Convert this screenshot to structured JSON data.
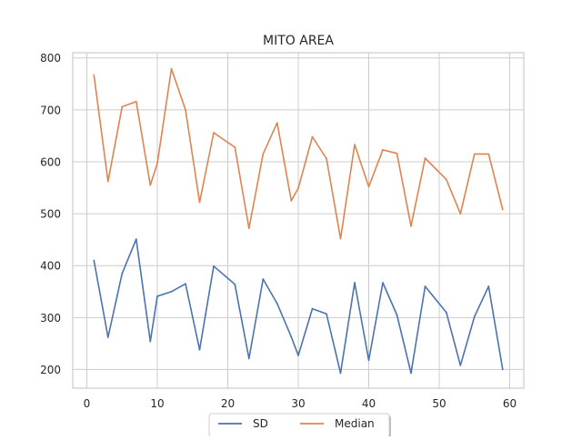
{
  "chart_data": {
    "type": "line",
    "title": "MITO AREA",
    "xlabel": "",
    "ylabel": "",
    "xlim": [
      -2,
      62
    ],
    "ylim": [
      164,
      810
    ],
    "xticks": [
      0,
      10,
      20,
      30,
      40,
      50,
      60
    ],
    "yticks": [
      200,
      300,
      400,
      500,
      600,
      700,
      800
    ],
    "grid": true,
    "legend_position": "bottom-center",
    "x": [
      1,
      3,
      5,
      7,
      9,
      10,
      12,
      14,
      16,
      18,
      21,
      23,
      25,
      27,
      29,
      30,
      32,
      34,
      36,
      38,
      40,
      42,
      44,
      46,
      48,
      51,
      53,
      55,
      57,
      59
    ],
    "series": [
      {
        "name": "SD",
        "color": "#4c72b0",
        "values": [
          410,
          262,
          385,
          451,
          254,
          341,
          350,
          365,
          238,
          399,
          364,
          221,
          374,
          327,
          263,
          227,
          317,
          307,
          193,
          367,
          218,
          367,
          305,
          193,
          360,
          310,
          208,
          302,
          360,
          200
        ]
      },
      {
        "name": "Median",
        "color": "#dd8452",
        "values": [
          767,
          562,
          706,
          716,
          555,
          597,
          779,
          700,
          522,
          656,
          628,
          472,
          615,
          675,
          525,
          549,
          648,
          606,
          452,
          633,
          552,
          623,
          616,
          476,
          607,
          566,
          500,
          615,
          615,
          508
        ]
      }
    ]
  }
}
